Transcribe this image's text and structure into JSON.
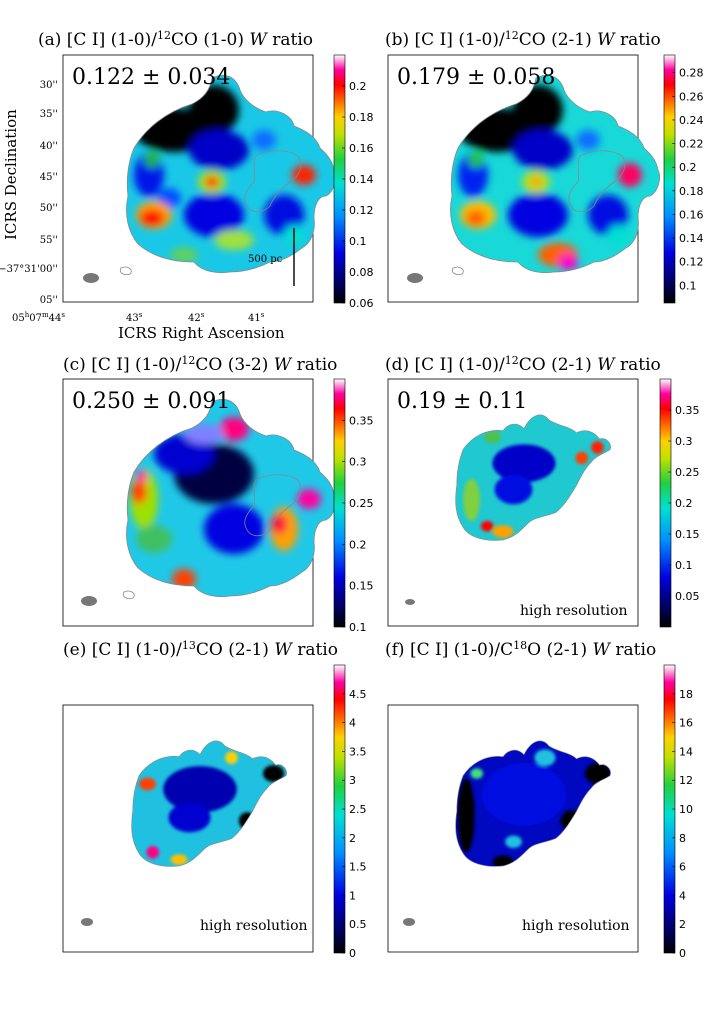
{
  "chart_data": [
    {
      "type": "heatmap",
      "panel": "a",
      "title": "(a) [C I] (1-0)/12CO (1-0) W ratio",
      "title_parts": {
        "prefix": "(a) [C I] (1-0)/",
        "sup": "12",
        "suffix": "CO (1-0) ",
        "w": "W",
        "tail": " ratio"
      },
      "ratio_value": "0.122 ± 0.034",
      "colorbar": {
        "vmin": 0.06,
        "vmax": 0.22,
        "ticks": [
          "0.06",
          "0.08",
          "0.1",
          "0.12",
          "0.14",
          "0.16",
          "0.18",
          "0.2"
        ],
        "tick_values": [
          0.06,
          0.08,
          0.1,
          0.12,
          0.14,
          0.16,
          0.18,
          0.2
        ]
      },
      "scale_bar": "500 pc",
      "x_ticks": [
        {
          "h": "05",
          "hs": "h",
          "m": "07",
          "ms": "m",
          "s": "44",
          "ss": "s"
        },
        {
          "s": "43",
          "ss": "s"
        },
        {
          "s": "42",
          "ss": "s"
        },
        {
          "s": "41",
          "ss": "s"
        }
      ],
      "y_ticks": [
        "30''",
        "35''",
        "40''",
        "45''",
        "50''",
        "55''",
        "−37°31'00''",
        "05''"
      ],
      "xlabel": "ICRS Right Ascension",
      "ylabel": "ICRS Declination"
    },
    {
      "type": "heatmap",
      "panel": "b",
      "title": "(b) [C I] (1-0)/12CO (2-1) W ratio",
      "title_parts": {
        "prefix": "(b) [C I] (1-0)/",
        "sup": "12",
        "suffix": "CO (2-1) ",
        "w": "W",
        "tail": " ratio"
      },
      "ratio_value": "0.179 ± 0.058",
      "colorbar": {
        "vmin": 0.085,
        "vmax": 0.295,
        "ticks": [
          "0.1",
          "0.12",
          "0.14",
          "0.16",
          "0.18",
          "0.2",
          "0.22",
          "0.24",
          "0.26",
          "0.28"
        ],
        "tick_values": [
          0.1,
          0.12,
          0.14,
          0.16,
          0.18,
          0.2,
          0.22,
          0.24,
          0.26,
          0.28
        ]
      }
    },
    {
      "type": "heatmap",
      "panel": "c",
      "title": "(c) [C I] (1-0)/12CO (3-2) W ratio",
      "title_parts": {
        "prefix": "(c) [C I] (1-0)/",
        "sup": "12",
        "suffix": "CO (3-2) ",
        "w": "W",
        "tail": " ratio"
      },
      "ratio_value": "0.250 ± 0.091",
      "colorbar": {
        "vmin": 0.1,
        "vmax": 0.4,
        "ticks": [
          "0.1",
          "0.15",
          "0.2",
          "0.25",
          "0.3",
          "0.35"
        ],
        "tick_values": [
          0.1,
          0.15,
          0.2,
          0.25,
          0.3,
          0.35
        ]
      }
    },
    {
      "type": "heatmap",
      "panel": "d",
      "title": "(d) [C I] (1-0)/12CO (2-1) W ratio",
      "title_parts": {
        "prefix": "(d) [C I] (1-0)/",
        "sup": "12",
        "suffix": "CO (2-1) ",
        "w": "W",
        "tail": " ratio"
      },
      "ratio_value": "0.19 ± 0.11",
      "annotation": "high resolution",
      "colorbar": {
        "vmin": 0.0,
        "vmax": 0.4,
        "ticks": [
          "0.05",
          "0.1",
          "0.15",
          "0.2",
          "0.25",
          "0.3",
          "0.35"
        ],
        "tick_values": [
          0.05,
          0.1,
          0.15,
          0.2,
          0.25,
          0.3,
          0.35
        ]
      }
    },
    {
      "type": "heatmap",
      "panel": "e",
      "title": "(e) [C I] (1-0)/13CO (2-1) W ratio",
      "title_parts": {
        "prefix": "(e) [C I] (1-0)/",
        "sup": "13",
        "suffix": "CO (2-1) ",
        "w": "W",
        "tail": " ratio"
      },
      "annotation": "high resolution",
      "colorbar": {
        "vmin": 0,
        "vmax": 5,
        "ticks": [
          "0",
          "0.5",
          "1",
          "1.5",
          "2",
          "2.5",
          "3",
          "3.5",
          "4",
          "4.5"
        ],
        "tick_values": [
          0,
          0.5,
          1,
          1.5,
          2,
          2.5,
          3,
          3.5,
          4,
          4.5
        ]
      }
    },
    {
      "type": "heatmap",
      "panel": "f",
      "title": "(f) [C I] (1-0)/C18O (2-1) W ratio",
      "title_parts": {
        "prefix": "(f) [C I] (1-0)/C",
        "sup": "18",
        "suffix": "O (2-1) ",
        "w": "W",
        "tail": " ratio"
      },
      "annotation": "high resolution",
      "colorbar": {
        "vmin": 0,
        "vmax": 20,
        "ticks": [
          "0",
          "2",
          "4",
          "6",
          "8",
          "10",
          "12",
          "14",
          "16",
          "18"
        ],
        "tick_values": [
          0,
          2,
          4,
          6,
          8,
          10,
          12,
          14,
          16,
          18
        ]
      }
    }
  ]
}
